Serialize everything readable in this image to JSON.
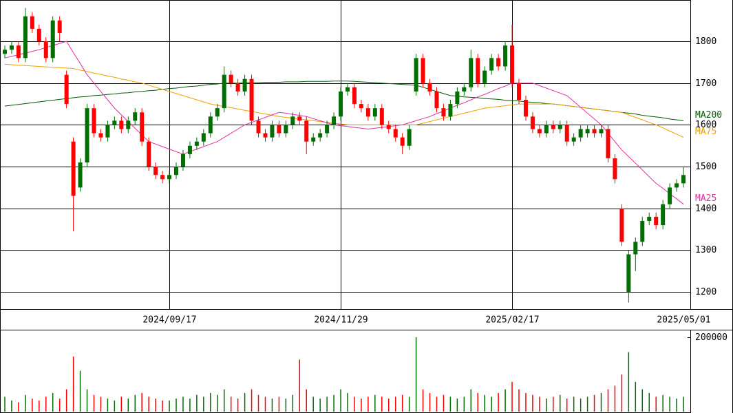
{
  "chart_data": [
    {
      "type": "candlestick",
      "categories": [
        null,
        null,
        null,
        null,
        null,
        null,
        null,
        null,
        null,
        null,
        null,
        null,
        null,
        null,
        null,
        null,
        null,
        null,
        null,
        null,
        null,
        null,
        null,
        null,
        "2024/09/17",
        null,
        null,
        null,
        null,
        null,
        null,
        null,
        null,
        null,
        null,
        null,
        null,
        null,
        null,
        null,
        null,
        null,
        null,
        null,
        null,
        null,
        null,
        null,
        null,
        "2024/11/29",
        null,
        null,
        null,
        null,
        null,
        null,
        null,
        null,
        null,
        null,
        null,
        null,
        null,
        null,
        null,
        null,
        null,
        null,
        null,
        null,
        null,
        null,
        null,
        null,
        "2025/02/17",
        null,
        null,
        null,
        null,
        null,
        null,
        null,
        null,
        null,
        null,
        null,
        null,
        null,
        null,
        null,
        null,
        null,
        null,
        null,
        null,
        null,
        null,
        null,
        null,
        "2025/05/01"
      ],
      "open": [
        1770,
        1780,
        1790,
        1760,
        1860,
        1830,
        1800,
        1760,
        1850,
        1720,
        1560,
        1450,
        1510,
        1640,
        1580,
        1570,
        1600,
        1610,
        1590,
        1610,
        1630,
        1560,
        1500,
        1480,
        1470,
        1480,
        1500,
        1530,
        1550,
        1560,
        1580,
        1620,
        1640,
        1720,
        1700,
        1680,
        1710,
        1610,
        1580,
        1570,
        1600,
        1580,
        1600,
        1620,
        1610,
        1560,
        1570,
        1580,
        1600,
        1620,
        1680,
        1690,
        1650,
        1640,
        1620,
        1640,
        1600,
        1590,
        1570,
        1550,
        1680,
        1760,
        1700,
        1680,
        1640,
        1620,
        1650,
        1680,
        1690,
        1760,
        1700,
        1730,
        1760,
        1740,
        1790,
        1700,
        1660,
        1620,
        1590,
        1580,
        1600,
        1590,
        1600,
        1560,
        1570,
        1580,
        1590,
        1580,
        1590,
        1520,
        1400,
        1200,
        1290,
        1320,
        1370,
        1380,
        1360,
        1410,
        1450,
        1460
      ],
      "high": [
        1790,
        1800,
        1800,
        1880,
        1870,
        1840,
        1810,
        1860,
        1860,
        1730,
        1570,
        1520,
        1650,
        1650,
        1590,
        1610,
        1620,
        1620,
        1620,
        1640,
        1640,
        1570,
        1510,
        1490,
        1490,
        1510,
        1540,
        1560,
        1570,
        1590,
        1630,
        1650,
        1740,
        1730,
        1710,
        1720,
        1720,
        1620,
        1590,
        1610,
        1610,
        1610,
        1630,
        1630,
        1620,
        1580,
        1590,
        1610,
        1630,
        1690,
        1700,
        1700,
        1660,
        1650,
        1650,
        1650,
        1610,
        1600,
        1580,
        1600,
        1770,
        1770,
        1710,
        1690,
        1650,
        1660,
        1690,
        1700,
        1780,
        1770,
        1740,
        1770,
        1770,
        1800,
        1840,
        1710,
        1670,
        1630,
        1600,
        1610,
        1610,
        1610,
        1610,
        1580,
        1600,
        1600,
        1600,
        1600,
        1600,
        1530,
        1410,
        1300,
        1330,
        1380,
        1390,
        1390,
        1420,
        1460,
        1470,
        1500
      ],
      "low": [
        1760,
        1770,
        1750,
        1750,
        1820,
        1790,
        1750,
        1750,
        1800,
        1640,
        1345,
        1440,
        1500,
        1570,
        1560,
        1560,
        1590,
        1580,
        1580,
        1600,
        1550,
        1490,
        1470,
        1460,
        1460,
        1470,
        1490,
        1520,
        1540,
        1550,
        1570,
        1610,
        1630,
        1690,
        1670,
        1670,
        1600,
        1570,
        1560,
        1560,
        1570,
        1570,
        1590,
        1600,
        1530,
        1550,
        1560,
        1570,
        1590,
        1610,
        1670,
        1640,
        1630,
        1610,
        1610,
        1590,
        1580,
        1560,
        1530,
        1540,
        1670,
        1690,
        1670,
        1630,
        1610,
        1610,
        1640,
        1670,
        1680,
        1690,
        1690,
        1720,
        1730,
        1730,
        1690,
        1650,
        1610,
        1580,
        1570,
        1570,
        1580,
        1580,
        1550,
        1550,
        1560,
        1570,
        1570,
        1570,
        1510,
        1460,
        1310,
        1175,
        1250,
        1310,
        1360,
        1350,
        1350,
        1400,
        1440,
        1450
      ],
      "close": [
        1780,
        1790,
        1760,
        1860,
        1830,
        1800,
        1760,
        1850,
        1820,
        1650,
        1430,
        1510,
        1640,
        1580,
        1570,
        1600,
        1610,
        1590,
        1610,
        1630,
        1560,
        1500,
        1480,
        1470,
        1480,
        1500,
        1530,
        1550,
        1560,
        1580,
        1620,
        1640,
        1720,
        1700,
        1680,
        1710,
        1610,
        1580,
        1570,
        1600,
        1580,
        1600,
        1620,
        1610,
        1560,
        1570,
        1580,
        1600,
        1620,
        1680,
        1690,
        1650,
        1640,
        1620,
        1640,
        1600,
        1590,
        1570,
        1550,
        1590,
        1760,
        1700,
        1680,
        1640,
        1620,
        1650,
        1680,
        1690,
        1760,
        1700,
        1730,
        1760,
        1740,
        1790,
        1700,
        1660,
        1620,
        1590,
        1580,
        1600,
        1590,
        1600,
        1560,
        1570,
        1590,
        1590,
        1580,
        1590,
        1520,
        1470,
        1320,
        1290,
        1320,
        1370,
        1380,
        1360,
        1410,
        1450,
        1460,
        1480
      ],
      "up_color": "#006e00",
      "down_color": "#ff0000",
      "series": [
        {
          "name": "MA200",
          "color": "#005a00",
          "values": [
            1645,
            1647,
            1649,
            1651,
            1653,
            1655,
            1657,
            1659,
            1661,
            1663,
            1665,
            1667,
            1668,
            1670,
            1671,
            1673,
            1674,
            1676,
            1677,
            1679,
            1680,
            1682,
            1683,
            1685,
            1687,
            1688,
            1690,
            1692,
            1693,
            1695,
            1697,
            1698,
            1700,
            1700,
            1700,
            1701,
            1701,
            1701,
            1702,
            1702,
            1702,
            1703,
            1703,
            1703,
            1704,
            1704,
            1704,
            1704,
            1705,
            1705,
            1705,
            1704,
            1703,
            1702,
            1701,
            1700,
            1699,
            1698,
            1697,
            1696,
            1695,
            1690,
            1685,
            1680,
            1675,
            1670,
            1669,
            1667,
            1666,
            1665,
            1663,
            1662,
            1661,
            1659,
            1658,
            1657,
            1655,
            1654,
            1653,
            1651,
            1650,
            1648,
            1646,
            1644,
            1642,
            1640,
            1638,
            1636,
            1634,
            1632,
            1630,
            1628,
            1626,
            1623,
            1621,
            1619,
            1617,
            1614,
            1612,
            1610
          ]
        },
        {
          "name": "MA75",
          "color": "#f0a000",
          "values": [
            1745,
            1744,
            1743,
            1742,
            1741,
            1740,
            1739,
            1738,
            1737,
            1736,
            1735,
            1731,
            1728,
            1724,
            1721,
            1717,
            1714,
            1710,
            1707,
            1703,
            1700,
            1695,
            1690,
            1685,
            1680,
            1675,
            1670,
            1665,
            1660,
            1655,
            1650,
            1647,
            1644,
            1641,
            1638,
            1635,
            1632,
            1629,
            1626,
            1623,
            1620,
            1618,
            1616,
            1614,
            1612,
            1610,
            1608,
            1606,
            1604,
            1602,
            1600,
            1600,
            1600,
            1600,
            1600,
            1600,
            1600,
            1600,
            1600,
            1600,
            1600,
            1604,
            1608,
            1612,
            1616,
            1620,
            1624,
            1628,
            1632,
            1636,
            1640,
            1642,
            1644,
            1646,
            1648,
            1650,
            1650,
            1650,
            1650,
            1650,
            1650,
            1648,
            1646,
            1644,
            1642,
            1640,
            1638,
            1636,
            1634,
            1632,
            1630,
            1624,
            1618,
            1612,
            1606,
            1600,
            1593,
            1585,
            1578,
            1570
          ]
        },
        {
          "name": "MA25",
          "color": "#e030a0",
          "values": [
            1760,
            1764,
            1768,
            1772,
            1776,
            1780,
            1785,
            1790,
            1795,
            1800,
            1773,
            1747,
            1720,
            1700,
            1680,
            1660,
            1640,
            1624,
            1608,
            1592,
            1576,
            1560,
            1554,
            1548,
            1542,
            1536,
            1530,
            1536,
            1542,
            1548,
            1554,
            1560,
            1570,
            1580,
            1590,
            1600,
            1606,
            1612,
            1618,
            1624,
            1630,
            1628,
            1625,
            1623,
            1620,
            1615,
            1610,
            1605,
            1600,
            1598,
            1596,
            1594,
            1592,
            1590,
            1592,
            1594,
            1596,
            1598,
            1600,
            1605,
            1610,
            1615,
            1620,
            1627,
            1633,
            1640,
            1647,
            1653,
            1660,
            1667,
            1673,
            1680,
            1687,
            1693,
            1700,
            1700,
            1700,
            1700,
            1694,
            1688,
            1682,
            1676,
            1670,
            1656,
            1642,
            1628,
            1614,
            1600,
            1580,
            1560,
            1540,
            1524,
            1508,
            1492,
            1476,
            1460,
            1448,
            1435,
            1423,
            1410
          ]
        }
      ],
      "ylim": [
        1159,
        1899
      ],
      "yticks": [
        1200,
        1300,
        1400,
        1500,
        1600,
        1700,
        1800
      ],
      "grid": true
    },
    {
      "type": "bar",
      "values": [
        40000,
        30000,
        25000,
        45000,
        35000,
        30000,
        40000,
        50000,
        35000,
        60000,
        148000,
        110000,
        60000,
        45000,
        40000,
        35000,
        30000,
        40000,
        35000,
        45000,
        50000,
        40000,
        35000,
        30000,
        30000,
        35000,
        40000,
        35000,
        45000,
        40000,
        50000,
        45000,
        60000,
        40000,
        35000,
        50000,
        60000,
        45000,
        40000,
        35000,
        40000,
        35000,
        45000,
        140000,
        60000,
        40000,
        35000,
        40000,
        45000,
        60000,
        50000,
        40000,
        35000,
        40000,
        45000,
        40000,
        35000,
        40000,
        45000,
        40000,
        200000,
        60000,
        50000,
        40000,
        45000,
        40000,
        35000,
        40000,
        60000,
        50000,
        45000,
        40000,
        50000,
        60000,
        80000,
        60000,
        50000,
        45000,
        40000,
        35000,
        40000,
        45000,
        35000,
        40000,
        35000,
        40000,
        45000,
        50000,
        60000,
        70000,
        100000,
        160000,
        80000,
        60000,
        50000,
        40000,
        45000,
        40000,
        35000,
        40000
      ],
      "ylim": [
        0,
        218519
      ],
      "yticks": [
        200000
      ]
    }
  ]
}
